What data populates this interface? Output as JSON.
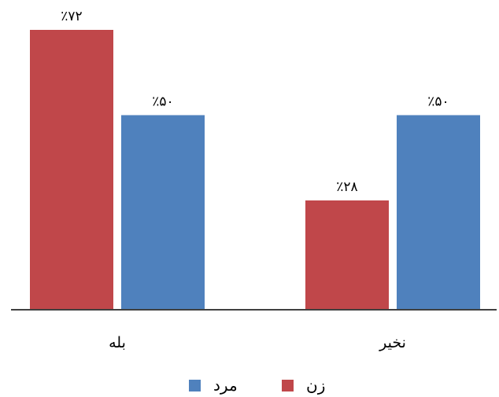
{
  "chart_data": {
    "type": "bar",
    "categories": [
      "بله",
      "نخیر"
    ],
    "series": [
      {
        "name": "زن",
        "values": [
          72,
          28
        ],
        "labels": [
          "٪۷۲",
          "٪۲۸"
        ],
        "color": "#C0474A"
      },
      {
        "name": "مرد",
        "values": [
          50,
          50
        ],
        "labels": [
          "٪۵۰",
          "٪۵۰"
        ],
        "color": "#4F81BD"
      }
    ],
    "ylim": [
      0,
      72
    ],
    "grid": false,
    "legend": "bottom"
  }
}
